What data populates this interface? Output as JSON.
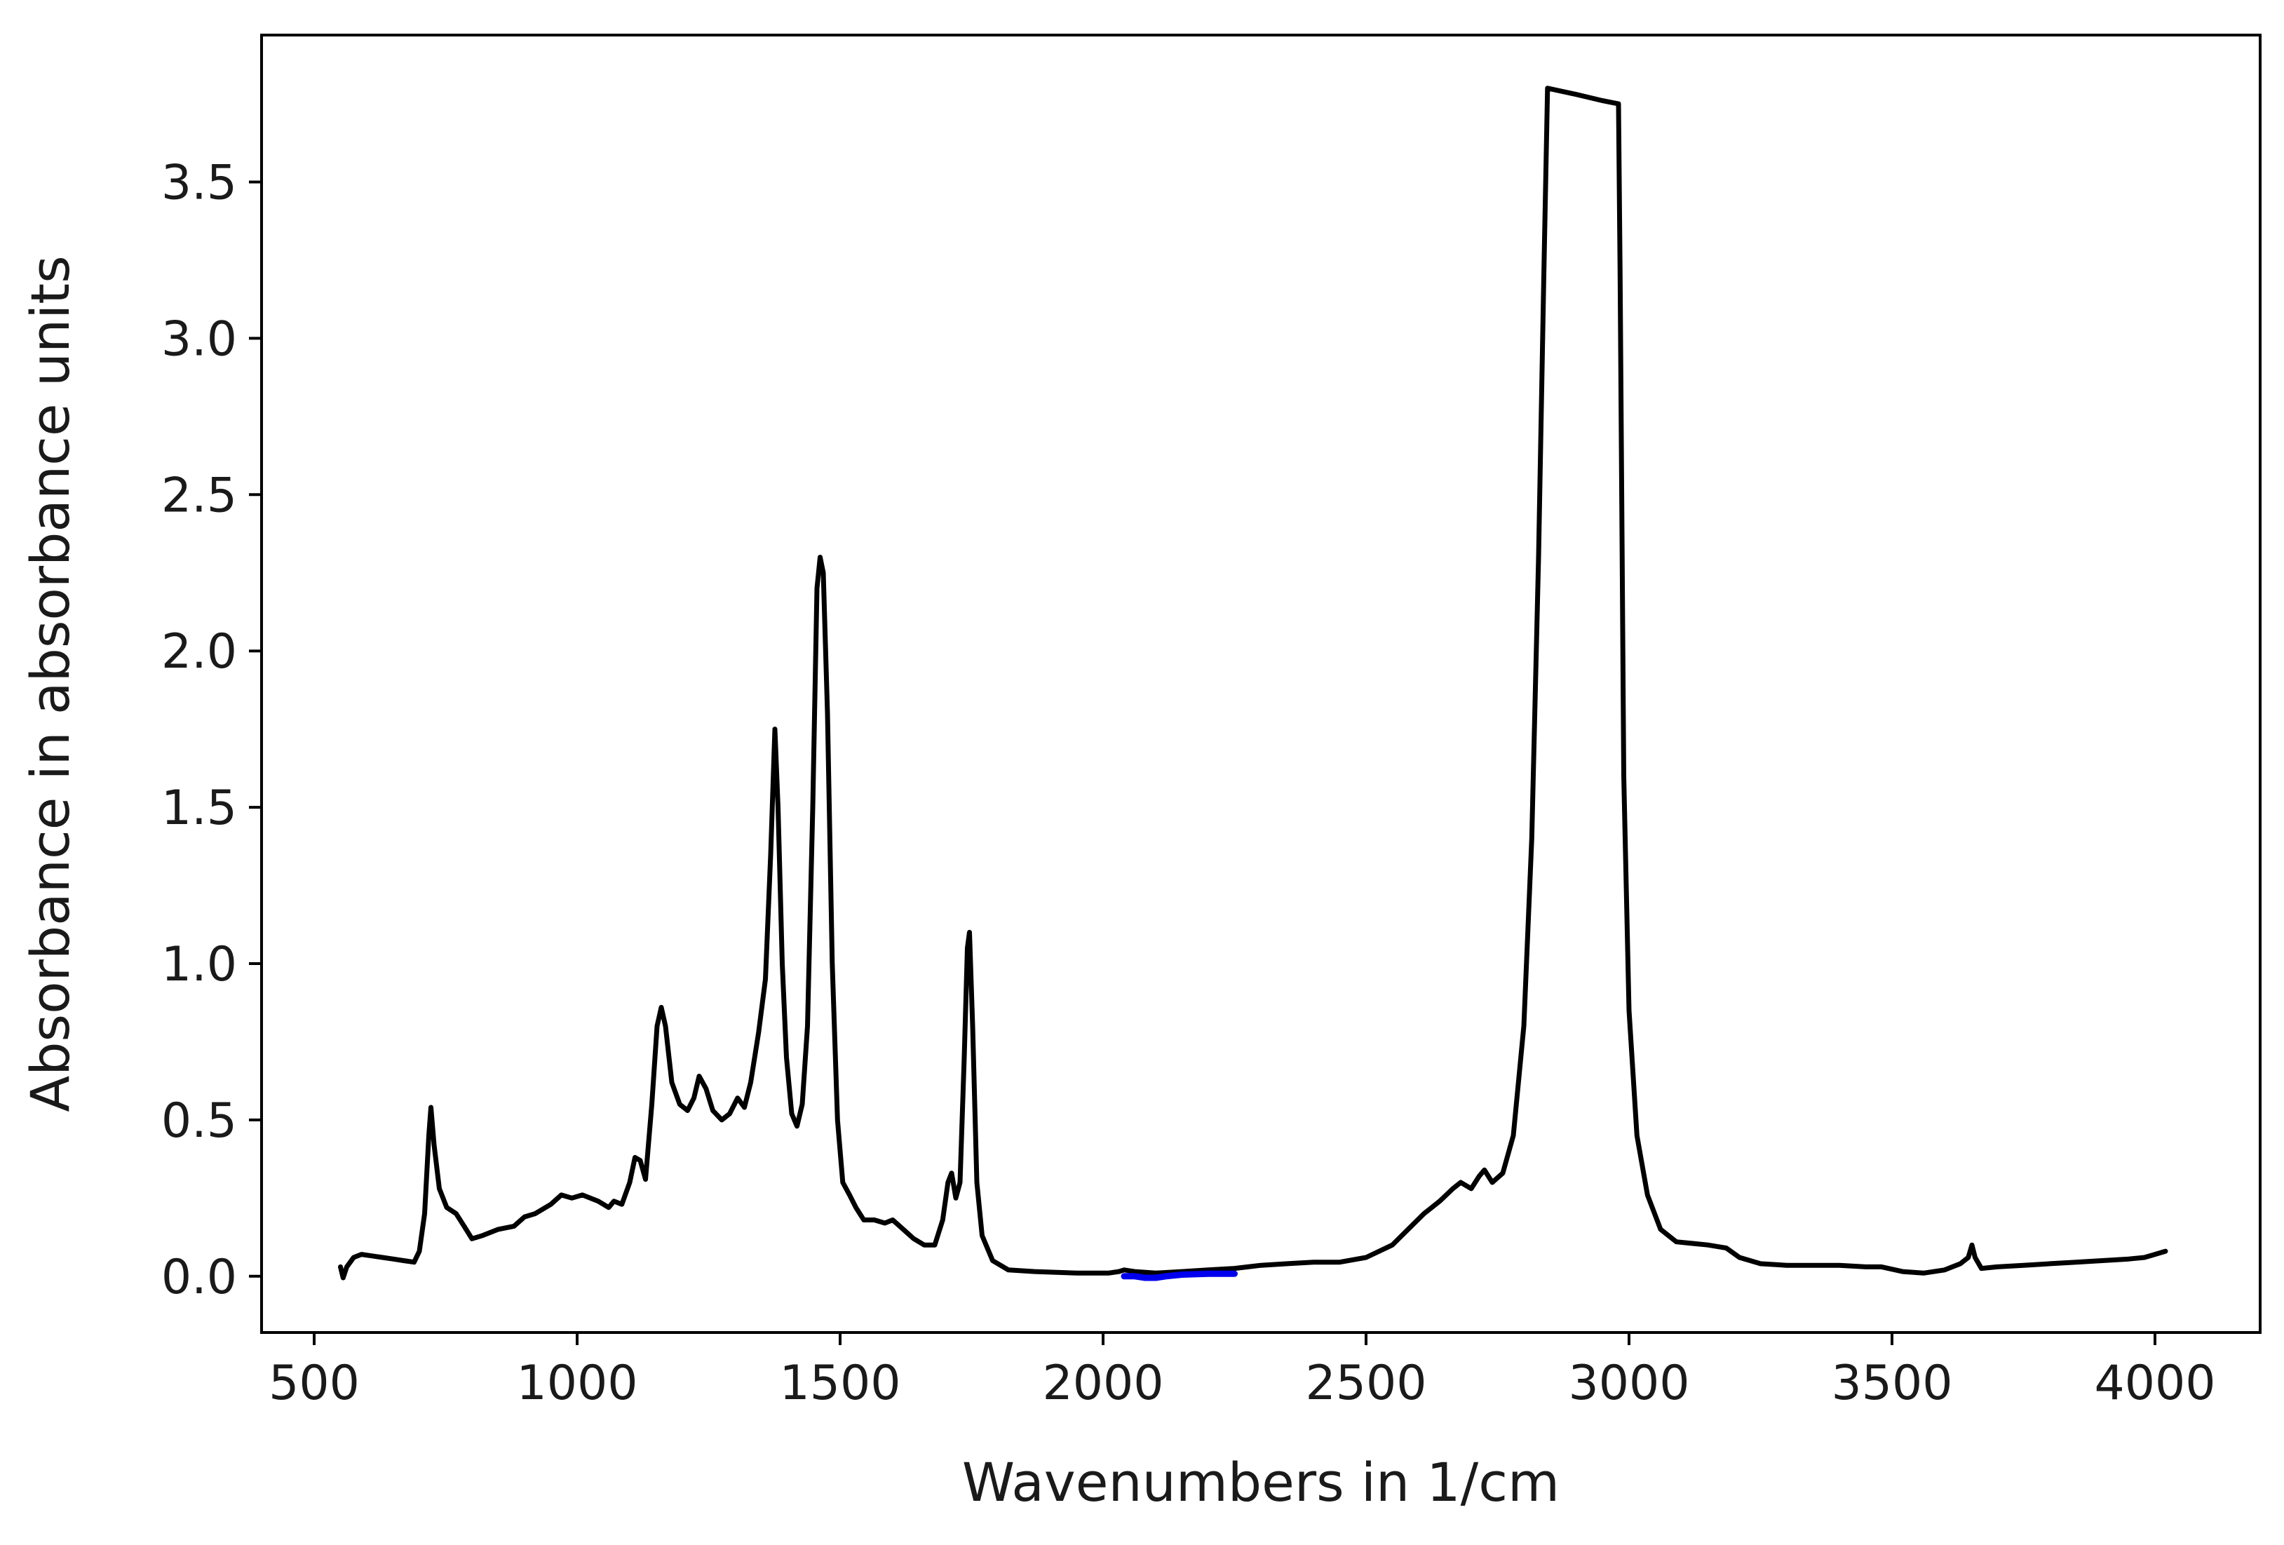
{
  "chart_data": {
    "type": "line",
    "title": "",
    "xlabel": "Wavenumbers in 1/cm",
    "ylabel": "Absorbance in absorbance units",
    "xlim": [
      400,
      4200
    ],
    "ylim": [
      -0.18,
      3.97
    ],
    "xticks": [
      500,
      1000,
      1500,
      2000,
      2500,
      3000,
      3500,
      4000
    ],
    "yticks": [
      0.0,
      0.5,
      1.0,
      1.5,
      2.0,
      2.5,
      3.0,
      3.5
    ],
    "xtick_labels": [
      "500",
      "1000",
      "1500",
      "2000",
      "2500",
      "3000",
      "3500",
      "4000"
    ],
    "ytick_labels": [
      "0.0",
      "0.5",
      "1.0",
      "1.5",
      "2.0",
      "2.5",
      "3.0",
      "3.5"
    ],
    "grid": false,
    "legend": "none",
    "series": [
      {
        "color": "#000000",
        "points": [
          [
            550,
            0.03
          ],
          [
            555,
            -0.005
          ],
          [
            562,
            0.03
          ],
          [
            575,
            0.06
          ],
          [
            590,
            0.07
          ],
          [
            610,
            0.065
          ],
          [
            630,
            0.06
          ],
          [
            650,
            0.055
          ],
          [
            670,
            0.05
          ],
          [
            690,
            0.045
          ],
          [
            700,
            0.08
          ],
          [
            710,
            0.2
          ],
          [
            718,
            0.45
          ],
          [
            722,
            0.54
          ],
          [
            728,
            0.42
          ],
          [
            738,
            0.28
          ],
          [
            752,
            0.22
          ],
          [
            770,
            0.2
          ],
          [
            785,
            0.16
          ],
          [
            800,
            0.12
          ],
          [
            820,
            0.13
          ],
          [
            850,
            0.15
          ],
          [
            880,
            0.16
          ],
          [
            900,
            0.19
          ],
          [
            920,
            0.2
          ],
          [
            950,
            0.23
          ],
          [
            970,
            0.26
          ],
          [
            990,
            0.25
          ],
          [
            1010,
            0.26
          ],
          [
            1040,
            0.24
          ],
          [
            1060,
            0.22
          ],
          [
            1070,
            0.24
          ],
          [
            1085,
            0.23
          ],
          [
            1100,
            0.3
          ],
          [
            1110,
            0.38
          ],
          [
            1120,
            0.37
          ],
          [
            1130,
            0.31
          ],
          [
            1142,
            0.55
          ],
          [
            1152,
            0.8
          ],
          [
            1160,
            0.86
          ],
          [
            1168,
            0.8
          ],
          [
            1180,
            0.62
          ],
          [
            1195,
            0.55
          ],
          [
            1210,
            0.53
          ],
          [
            1222,
            0.57
          ],
          [
            1232,
            0.64
          ],
          [
            1245,
            0.6
          ],
          [
            1258,
            0.53
          ],
          [
            1275,
            0.5
          ],
          [
            1290,
            0.52
          ],
          [
            1305,
            0.57
          ],
          [
            1318,
            0.54
          ],
          [
            1330,
            0.62
          ],
          [
            1345,
            0.78
          ],
          [
            1358,
            0.95
          ],
          [
            1368,
            1.35
          ],
          [
            1376,
            1.75
          ],
          [
            1382,
            1.5
          ],
          [
            1390,
            1.0
          ],
          [
            1398,
            0.7
          ],
          [
            1408,
            0.52
          ],
          [
            1418,
            0.48
          ],
          [
            1428,
            0.55
          ],
          [
            1438,
            0.8
          ],
          [
            1448,
            1.5
          ],
          [
            1456,
            2.2
          ],
          [
            1462,
            2.3
          ],
          [
            1468,
            2.25
          ],
          [
            1476,
            1.8
          ],
          [
            1485,
            1.0
          ],
          [
            1495,
            0.5
          ],
          [
            1505,
            0.3
          ],
          [
            1518,
            0.26
          ],
          [
            1530,
            0.22
          ],
          [
            1545,
            0.18
          ],
          [
            1565,
            0.18
          ],
          [
            1585,
            0.17
          ],
          [
            1600,
            0.18
          ],
          [
            1620,
            0.15
          ],
          [
            1640,
            0.12
          ],
          [
            1660,
            0.1
          ],
          [
            1680,
            0.1
          ],
          [
            1695,
            0.18
          ],
          [
            1705,
            0.3
          ],
          [
            1712,
            0.33
          ],
          [
            1720,
            0.25
          ],
          [
            1728,
            0.3
          ],
          [
            1736,
            0.7
          ],
          [
            1742,
            1.05
          ],
          [
            1746,
            1.1
          ],
          [
            1752,
            0.8
          ],
          [
            1760,
            0.3
          ],
          [
            1770,
            0.13
          ],
          [
            1790,
            0.05
          ],
          [
            1820,
            0.02
          ],
          [
            1870,
            0.015
          ],
          [
            1950,
            0.01
          ],
          [
            2010,
            0.01
          ],
          [
            2030,
            0.015
          ],
          [
            2040,
            0.02
          ],
          [
            2060,
            0.015
          ],
          [
            2100,
            0.01
          ],
          [
            2150,
            0.015
          ],
          [
            2200,
            0.02
          ],
          [
            2250,
            0.025
          ],
          [
            2300,
            0.035
          ],
          [
            2350,
            0.04
          ],
          [
            2400,
            0.045
          ],
          [
            2450,
            0.045
          ],
          [
            2500,
            0.06
          ],
          [
            2550,
            0.1
          ],
          [
            2580,
            0.15
          ],
          [
            2610,
            0.2
          ],
          [
            2640,
            0.24
          ],
          [
            2665,
            0.28
          ],
          [
            2680,
            0.3
          ],
          [
            2700,
            0.28
          ],
          [
            2715,
            0.32
          ],
          [
            2725,
            0.34
          ],
          [
            2740,
            0.3
          ],
          [
            2760,
            0.33
          ],
          [
            2780,
            0.45
          ],
          [
            2800,
            0.8
          ],
          [
            2815,
            1.4
          ],
          [
            2828,
            2.3
          ],
          [
            2838,
            3.2
          ],
          [
            2845,
            3.8
          ],
          [
            2900,
            3.78
          ],
          [
            2950,
            3.76
          ],
          [
            2980,
            3.75
          ],
          [
            2983,
            3.2
          ],
          [
            2990,
            1.6
          ],
          [
            3000,
            0.85
          ],
          [
            3015,
            0.45
          ],
          [
            3035,
            0.26
          ],
          [
            3060,
            0.15
          ],
          [
            3090,
            0.11
          ],
          [
            3150,
            0.1
          ],
          [
            3185,
            0.09
          ],
          [
            3210,
            0.06
          ],
          [
            3250,
            0.04
          ],
          [
            3300,
            0.035
          ],
          [
            3350,
            0.035
          ],
          [
            3400,
            0.035
          ],
          [
            3450,
            0.03
          ],
          [
            3480,
            0.03
          ],
          [
            3520,
            0.015
          ],
          [
            3560,
            0.01
          ],
          [
            3600,
            0.02
          ],
          [
            3630,
            0.04
          ],
          [
            3645,
            0.06
          ],
          [
            3652,
            0.1
          ],
          [
            3658,
            0.06
          ],
          [
            3670,
            0.025
          ],
          [
            3700,
            0.03
          ],
          [
            3750,
            0.035
          ],
          [
            3800,
            0.04
          ],
          [
            3850,
            0.045
          ],
          [
            3900,
            0.05
          ],
          [
            3950,
            0.055
          ],
          [
            3980,
            0.06
          ],
          [
            4000,
            0.07
          ],
          [
            4020,
            0.08
          ]
        ]
      },
      {
        "color": "#0000ee",
        "points": [
          [
            2040,
            0.0
          ],
          [
            2060,
            0.0
          ],
          [
            2080,
            -0.005
          ],
          [
            2100,
            -0.005
          ],
          [
            2120,
            0.0
          ],
          [
            2150,
            0.005
          ],
          [
            2200,
            0.008
          ],
          [
            2250,
            0.008
          ]
        ]
      }
    ]
  }
}
